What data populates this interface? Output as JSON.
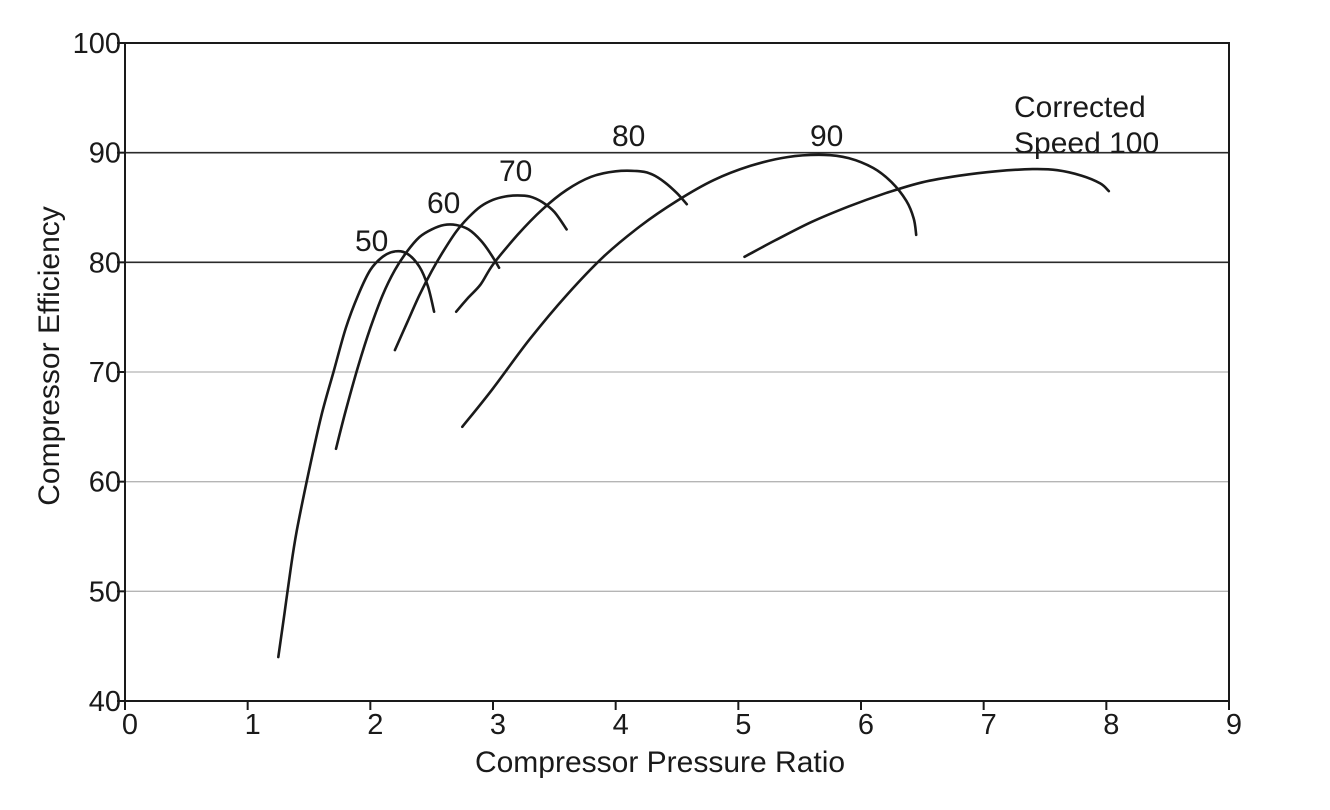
{
  "chart_data": {
    "type": "line",
    "title": "",
    "xlabel": "Compressor Pressure Ratio",
    "ylabel": "Compressor Efficiency",
    "xlim": [
      0,
      9
    ],
    "ylim": [
      40,
      100
    ],
    "x_ticks": [
      "0",
      "1",
      "2",
      "3",
      "4",
      "5",
      "6",
      "7",
      "8",
      "9"
    ],
    "y_ticks": [
      "40",
      "50",
      "60",
      "70",
      "80",
      "90",
      "100"
    ],
    "grid": {
      "horizontal": true,
      "vertical": false,
      "dark_lines_at": [
        80,
        90
      ]
    },
    "legend": "none",
    "annotations": [
      {
        "text": "Corrected",
        "series": "100"
      },
      {
        "text": "Speed 100",
        "series": "100"
      }
    ],
    "series": [
      {
        "name": "50",
        "points": [
          [
            1.25,
            44
          ],
          [
            1.3,
            48
          ],
          [
            1.35,
            52
          ],
          [
            1.4,
            55.5
          ],
          [
            1.5,
            61
          ],
          [
            1.6,
            66
          ],
          [
            1.7,
            70
          ],
          [
            1.8,
            74
          ],
          [
            1.9,
            77
          ],
          [
            2.0,
            79.3
          ],
          [
            2.1,
            80.5
          ],
          [
            2.2,
            81
          ],
          [
            2.3,
            80.8
          ],
          [
            2.4,
            79.6
          ],
          [
            2.47,
            77.8
          ],
          [
            2.52,
            75.5
          ]
        ]
      },
      {
        "name": "60",
        "points": [
          [
            1.72,
            63
          ],
          [
            1.8,
            66.5
          ],
          [
            1.9,
            70.5
          ],
          [
            2.0,
            74
          ],
          [
            2.1,
            77
          ],
          [
            2.2,
            79.3
          ],
          [
            2.3,
            81
          ],
          [
            2.4,
            82.3
          ],
          [
            2.5,
            83
          ],
          [
            2.6,
            83.4
          ],
          [
            2.7,
            83.4
          ],
          [
            2.8,
            83
          ],
          [
            2.9,
            82
          ],
          [
            2.98,
            80.8
          ],
          [
            3.05,
            79.5
          ]
        ]
      },
      {
        "name": "70",
        "points": [
          [
            2.2,
            72
          ],
          [
            2.3,
            74.5
          ],
          [
            2.4,
            77
          ],
          [
            2.5,
            79.2
          ],
          [
            2.6,
            81.1
          ],
          [
            2.7,
            82.8
          ],
          [
            2.8,
            84.1
          ],
          [
            2.9,
            85.1
          ],
          [
            3.0,
            85.7
          ],
          [
            3.1,
            86
          ],
          [
            3.2,
            86.1
          ],
          [
            3.3,
            86
          ],
          [
            3.4,
            85.5
          ],
          [
            3.5,
            84.6
          ],
          [
            3.6,
            83
          ]
        ]
      },
      {
        "name": "80",
        "points": [
          [
            2.7,
            75.5
          ],
          [
            2.8,
            76.8
          ],
          [
            2.9,
            78
          ],
          [
            3.0,
            79.8
          ],
          [
            3.2,
            82.5
          ],
          [
            3.4,
            84.8
          ],
          [
            3.6,
            86.6
          ],
          [
            3.8,
            87.8
          ],
          [
            4.0,
            88.3
          ],
          [
            4.2,
            88.3
          ],
          [
            4.3,
            88
          ],
          [
            4.4,
            87.3
          ],
          [
            4.5,
            86.3
          ],
          [
            4.58,
            85.3
          ]
        ]
      },
      {
        "name": "90",
        "points": [
          [
            2.75,
            65
          ],
          [
            3.0,
            68.5
          ],
          [
            3.3,
            73
          ],
          [
            3.6,
            77
          ],
          [
            3.9,
            80.5
          ],
          [
            4.2,
            83.3
          ],
          [
            4.5,
            85.6
          ],
          [
            4.8,
            87.5
          ],
          [
            5.1,
            88.8
          ],
          [
            5.4,
            89.6
          ],
          [
            5.7,
            89.8
          ],
          [
            5.9,
            89.5
          ],
          [
            6.1,
            88.6
          ],
          [
            6.25,
            87.3
          ],
          [
            6.37,
            85.6
          ],
          [
            6.43,
            84
          ],
          [
            6.45,
            82.5
          ]
        ]
      },
      {
        "name": "100",
        "points": [
          [
            5.05,
            80.5
          ],
          [
            5.3,
            82
          ],
          [
            5.6,
            83.7
          ],
          [
            5.9,
            85.1
          ],
          [
            6.2,
            86.3
          ],
          [
            6.5,
            87.3
          ],
          [
            6.8,
            87.9
          ],
          [
            7.1,
            88.3
          ],
          [
            7.4,
            88.5
          ],
          [
            7.6,
            88.4
          ],
          [
            7.8,
            87.9
          ],
          [
            7.95,
            87.2
          ],
          [
            8.02,
            86.5
          ]
        ]
      }
    ]
  }
}
